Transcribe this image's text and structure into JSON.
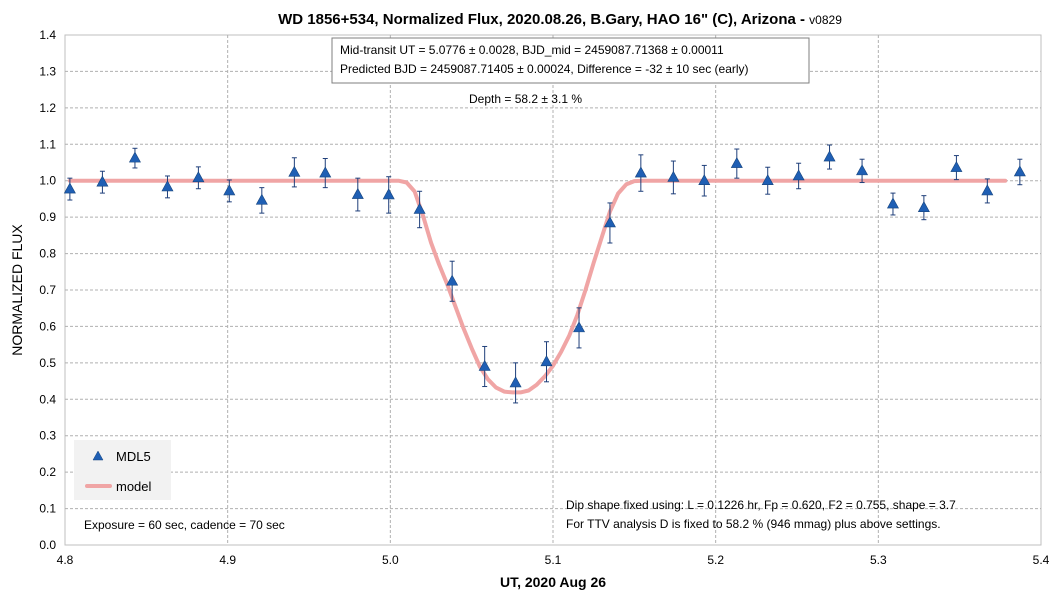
{
  "chart_data": {
    "type": "scatter",
    "title_main": "WD 1856+534, Normalized Flux, 2020.08.26, B.Gary, HAO 16\" (C), Arizona - ",
    "title_suffix": "v0829",
    "xlabel": "UT, 2020 Aug 26",
    "ylabel": "NORMALIZED FLUX",
    "xlim": [
      4.8,
      5.4
    ],
    "ylim": [
      0.0,
      1.4
    ],
    "x_ticks": [
      "4.8",
      "4.9",
      "5.0",
      "5.1",
      "5.2",
      "5.3",
      "5.4"
    ],
    "y_ticks": [
      "0.0",
      "0.1",
      "0.2",
      "0.3",
      "0.4",
      "0.5",
      "0.6",
      "0.7",
      "0.8",
      "0.9",
      "1.0",
      "1.1",
      "1.2",
      "1.3",
      "1.4"
    ],
    "grid": true,
    "legend_position": "bottom-left",
    "series": [
      {
        "name": "MDL5",
        "marker": "triangle",
        "color": "#1f5fb4",
        "points": [
          {
            "x": 4.803,
            "y": 0.977,
            "err": 0.03
          },
          {
            "x": 4.823,
            "y": 0.996,
            "err": 0.03
          },
          {
            "x": 4.843,
            "y": 1.062,
            "err": 0.027
          },
          {
            "x": 4.863,
            "y": 0.983,
            "err": 0.03
          },
          {
            "x": 4.882,
            "y": 1.008,
            "err": 0.03
          },
          {
            "x": 4.901,
            "y": 0.972,
            "err": 0.03
          },
          {
            "x": 4.921,
            "y": 0.946,
            "err": 0.035
          },
          {
            "x": 4.941,
            "y": 1.023,
            "err": 0.04
          },
          {
            "x": 4.96,
            "y": 1.021,
            "err": 0.04
          },
          {
            "x": 4.98,
            "y": 0.962,
            "err": 0.045
          },
          {
            "x": 4.999,
            "y": 0.961,
            "err": 0.05
          },
          {
            "x": 5.018,
            "y": 0.921,
            "err": 0.05
          },
          {
            "x": 5.038,
            "y": 0.724,
            "err": 0.055
          },
          {
            "x": 5.058,
            "y": 0.49,
            "err": 0.055
          },
          {
            "x": 5.077,
            "y": 0.445,
            "err": 0.055
          },
          {
            "x": 5.096,
            "y": 0.503,
            "err": 0.055
          },
          {
            "x": 5.116,
            "y": 0.596,
            "err": 0.055
          },
          {
            "x": 5.135,
            "y": 0.884,
            "err": 0.055
          },
          {
            "x": 5.154,
            "y": 1.021,
            "err": 0.05
          },
          {
            "x": 5.174,
            "y": 1.009,
            "err": 0.045
          },
          {
            "x": 5.193,
            "y": 1.0,
            "err": 0.042
          },
          {
            "x": 5.213,
            "y": 1.047,
            "err": 0.04
          },
          {
            "x": 5.232,
            "y": 1.0,
            "err": 0.037
          },
          {
            "x": 5.251,
            "y": 1.013,
            "err": 0.035
          },
          {
            "x": 5.27,
            "y": 1.065,
            "err": 0.033
          },
          {
            "x": 5.29,
            "y": 1.027,
            "err": 0.032
          },
          {
            "x": 5.309,
            "y": 0.936,
            "err": 0.03
          },
          {
            "x": 5.328,
            "y": 0.926,
            "err": 0.033
          },
          {
            "x": 5.348,
            "y": 1.036,
            "err": 0.033
          },
          {
            "x": 5.367,
            "y": 0.972,
            "err": 0.033
          },
          {
            "x": 5.387,
            "y": 1.024,
            "err": 0.035
          }
        ]
      },
      {
        "name": "model",
        "type": "line",
        "color": "#f0a5a5",
        "x": [
          4.803,
          5.005,
          5.01,
          5.015,
          5.02,
          5.025,
          5.03,
          5.035,
          5.04,
          5.045,
          5.05,
          5.055,
          5.06,
          5.065,
          5.07,
          5.075,
          5.08,
          5.085,
          5.09,
          5.095,
          5.1,
          5.105,
          5.11,
          5.115,
          5.12,
          5.125,
          5.13,
          5.135,
          5.14,
          5.145,
          5.15,
          5.155,
          5.378
        ],
        "values": [
          1.0,
          1.0,
          0.995,
          0.97,
          0.905,
          0.83,
          0.77,
          0.715,
          0.655,
          0.595,
          0.54,
          0.49,
          0.455,
          0.432,
          0.421,
          0.419,
          0.419,
          0.424,
          0.44,
          0.463,
          0.492,
          0.53,
          0.575,
          0.632,
          0.7,
          0.775,
          0.845,
          0.915,
          0.965,
          0.99,
          0.999,
          1.0,
          1.0
        ]
      }
    ],
    "annotations": {
      "box_line1": "Mid-transit UT = 5.0776 ± 0.0028, BJD_mid = 2459087.71368 ± 0.00011",
      "box_line2": "Predicted BJD = 2459087.71405 ± 0.00024, Difference = -32 ± 10 sec (early)",
      "depth": "Depth = 58.2 ± 3.1 %",
      "fit_line1": "Dip shape fixed using:  L = 0.1226 hr, Fp = 0.620, F2 = 0.755, shape = 3.7",
      "fit_line2": "For TTV analysis D is fixed  to 58.2 % (946 mmag) plus above settings.",
      "exposure": "Exposure = 60 sec, cadence = 70 sec"
    }
  }
}
